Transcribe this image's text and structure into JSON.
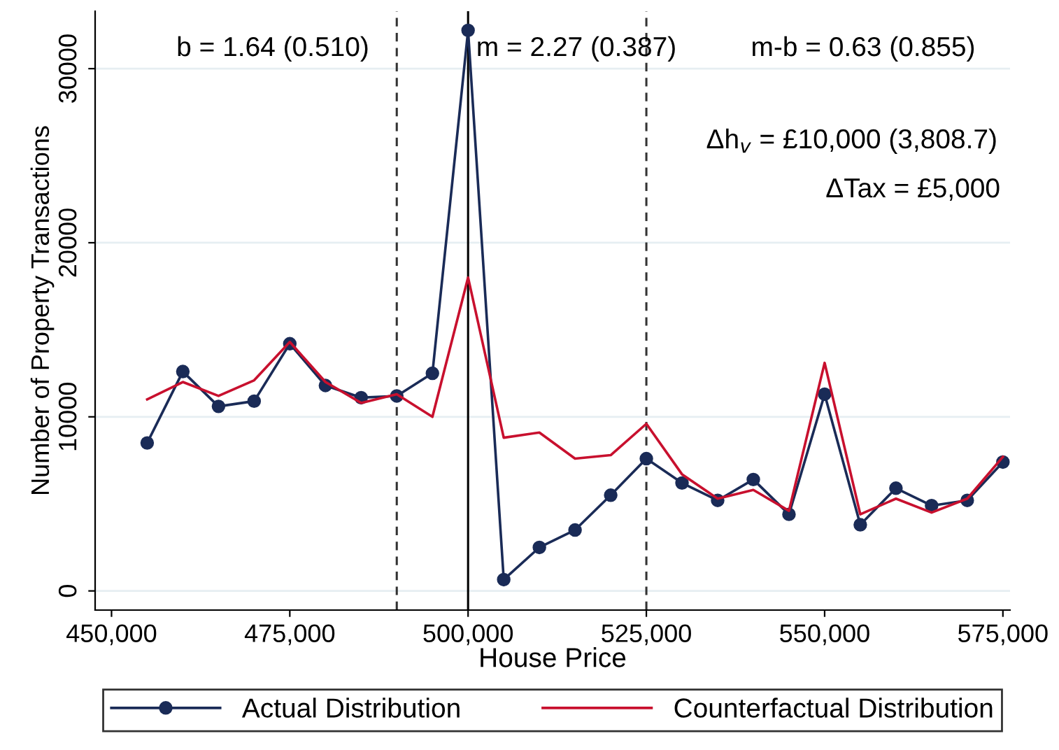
{
  "chart_data": {
    "type": "line",
    "xlabel": "House Price",
    "ylabel": "Number of Property Transactions",
    "x": [
      455000,
      460000,
      465000,
      470000,
      475000,
      480000,
      485000,
      490000,
      495000,
      500000,
      505000,
      510000,
      515000,
      520000,
      525000,
      530000,
      535000,
      540000,
      545000,
      550000,
      555000,
      560000,
      565000,
      570000,
      575000
    ],
    "series": [
      {
        "name": "Actual Distribution",
        "color": "#1a2b57",
        "marker": "circle",
        "values": [
          8500,
          12600,
          10600,
          10900,
          14200,
          11800,
          11100,
          11200,
          12500,
          32200,
          650,
          2500,
          3500,
          5500,
          7600,
          6200,
          5200,
          6400,
          4400,
          11300,
          3800,
          5900,
          4900,
          5200,
          7400
        ]
      },
      {
        "name": "Counterfactual Distribution",
        "color": "#c8102e",
        "marker": "none",
        "values": [
          11000,
          12000,
          11200,
          12100,
          14300,
          12000,
          10800,
          11300,
          10000,
          18000,
          8800,
          9100,
          7600,
          7800,
          9600,
          6700,
          5300,
          5800,
          4600,
          13100,
          4400,
          5300,
          4500,
          5300,
          7700
        ]
      }
    ],
    "xlim": [
      447700,
      576000
    ],
    "ylim": [
      -1100,
      33300
    ],
    "xticks": [
      {
        "value": 450000,
        "label": "450,000"
      },
      {
        "value": 475000,
        "label": "475,000"
      },
      {
        "value": 500000,
        "label": "500,000"
      },
      {
        "value": 525000,
        "label": "525,000"
      },
      {
        "value": 550000,
        "label": "550,000"
      },
      {
        "value": 575000,
        "label": "575,000"
      }
    ],
    "yticks": [
      0,
      10000,
      20000,
      30000
    ],
    "ref_lines": [
      {
        "axis": "x",
        "value": 490000,
        "line_style": "dashed",
        "color": "#333333"
      },
      {
        "axis": "x",
        "value": 500000,
        "line_style": "solid",
        "color": "#000000"
      },
      {
        "axis": "x",
        "value": 525000,
        "line_style": "dashed",
        "color": "#333333"
      }
    ],
    "annotations": [
      "b = 1.64 (0.510)",
      "m = 2.27 (0.387)",
      "m-b = 0.63 (0.855)",
      "Δh$_{v}$ = £10,000 (3,808.7)",
      "ΔTax = £5,000"
    ],
    "grid": "y",
    "legend": "bottom"
  }
}
